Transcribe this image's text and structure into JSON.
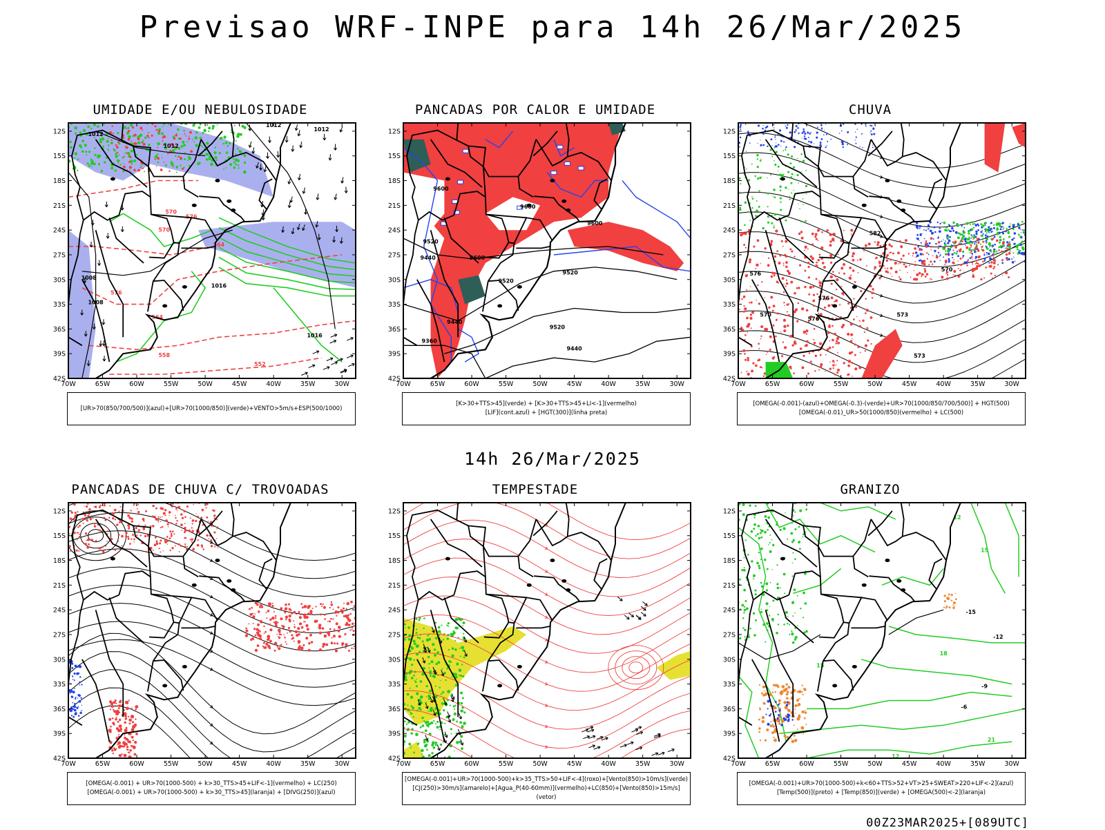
{
  "title": "Previsao WRF-INPE  para 14h 26/Mar/2025",
  "mid_title": "14h 26/Mar/2025",
  "footer": "00Z23MAR2025+[089UTC]",
  "axes": {
    "lat_labels": [
      "12S",
      "15S",
      "18S",
      "21S",
      "24S",
      "27S",
      "30S",
      "33S",
      "36S",
      "39S",
      "42S"
    ],
    "lon_labels": [
      "70W",
      "65W",
      "60W",
      "55W",
      "50W",
      "45W",
      "40W",
      "35W",
      "30W"
    ]
  },
  "colors": {
    "green": "#22cc22",
    "red": "#f04040",
    "blue": "#2244ee",
    "lavender": "#aab0ee",
    "dark_teal": "#2e5e58",
    "yellow": "#e6e033",
    "orange": "#ee8833"
  },
  "panels": [
    {
      "title": "UMIDADE E/OU NEBULOSIDADE",
      "legend": [
        "[UR>70(850/700/500)](azul)+[UR>70(1000/850)](verde)+VENTO>5m/s+ESP(500/1000)"
      ],
      "contour_labels": [
        "1012",
        "1012",
        "1012",
        "1012",
        "1008",
        "1008",
        "1016",
        "1016",
        "570",
        "576",
        "564",
        "558",
        "552",
        "564",
        "576",
        "570"
      ]
    },
    {
      "title": "PANCADAS POR CALOR E UMIDADE",
      "legend": [
        "[K>30+TTS>45](verde) + [K>30+TTS>45+LI<-1](vermelho)",
        "[LIF](cont.azul) + [HGT(300)](linha preta)"
      ],
      "contour_labels": [
        "9600",
        "9600",
        "9600",
        "9520",
        "9520",
        "9520",
        "9440",
        "9440",
        "9440",
        "9360",
        "9600",
        "9520"
      ]
    },
    {
      "title": "CHUVA",
      "legend": [
        "[OMEGA(-0.001)-(azul)+OMEGA(-0.3)-(verde)+UR>70(1000/850/700/500)] + HGT(500)",
        "[OMEGA(-0.01)_UR>50(1000/850)(vermelho) + LC(500)"
      ],
      "contour_labels": [
        "576",
        "582",
        "570",
        "573",
        "576",
        "570",
        "576",
        "573"
      ]
    },
    {
      "title": "PANCADAS DE CHUVA C/ TROVOADAS",
      "legend": [
        "[OMEGA(-0.001) + UR>70(1000-500) + k>30_TTS>45+LIF<-1](vermelho) + LC(250)",
        "[OMEGA(-0.001) + UR>70(1000-500) + k>30_TTS>45](laranja) + [DIVG(250)](azul)"
      ],
      "contour_labels": []
    },
    {
      "title": "TEMPESTADE",
      "legend": [
        "[OMEGA(-0.001)+UR>70(1000-500)+k>35_TTS>50+LIF<-4](roxo)+[Vento(850)>10m/s](verde)",
        "[CJ(250)>30m/s](amarelo)+[Agua_P(40-60mm)](vermelho)+LC(850)+[Vento(850)>15m/s](vetor)"
      ],
      "contour_labels": []
    },
    {
      "title": "GRANIZO",
      "legend": [
        "[OMEGA(-0.001)+UR>70(1000-500)+k<60+TTS>52+VT>25+SWEAT>220+LIF<-2](azul)",
        "[Temp(500)](preto) + [Temp(850)](verde) + [OMEGA(500)<-2](laranja)"
      ],
      "contour_labels": [
        "-15",
        "-12",
        "-9",
        "-6",
        "12",
        "15",
        "18",
        "21",
        "15",
        "12"
      ]
    }
  ]
}
